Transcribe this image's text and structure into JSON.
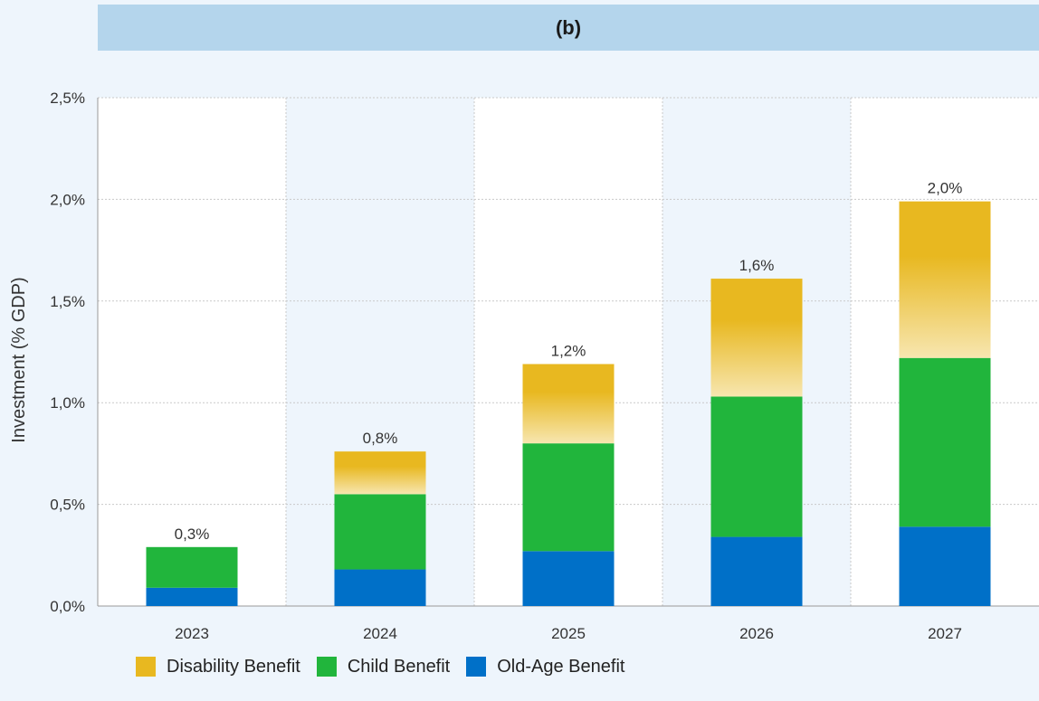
{
  "chart_data": {
    "type": "bar",
    "stacked": true,
    "title": "(b)",
    "ylabel": "Investment (% GDP)",
    "xlabel": "",
    "categories": [
      "2023",
      "2024",
      "2025",
      "2026",
      "2027"
    ],
    "ylim": [
      0,
      2.5
    ],
    "yticks": [
      "0,0%",
      "0,5%",
      "1,0%",
      "1,5%",
      "2,0%",
      "2,5%"
    ],
    "series": [
      {
        "name": "Old-Age Benefit",
        "color": "#0070c8",
        "values": [
          0.09,
          0.18,
          0.27,
          0.34,
          0.39
        ]
      },
      {
        "name": "Child Benefit",
        "color": "#21b53c",
        "values": [
          0.2,
          0.37,
          0.53,
          0.69,
          0.83
        ]
      },
      {
        "name": "Disability Benefit",
        "color": "#e8b820",
        "values": [
          0.0,
          0.21,
          0.39,
          0.58,
          0.77
        ]
      }
    ],
    "totals": [
      "0,3%",
      "0,8%",
      "1,2%",
      "1,6%",
      "2,0%"
    ],
    "legend_order": [
      "Disability Benefit",
      "Child Benefit",
      "Old-Age Benefit"
    ],
    "legend_position": "bottom-left",
    "grid": true
  }
}
